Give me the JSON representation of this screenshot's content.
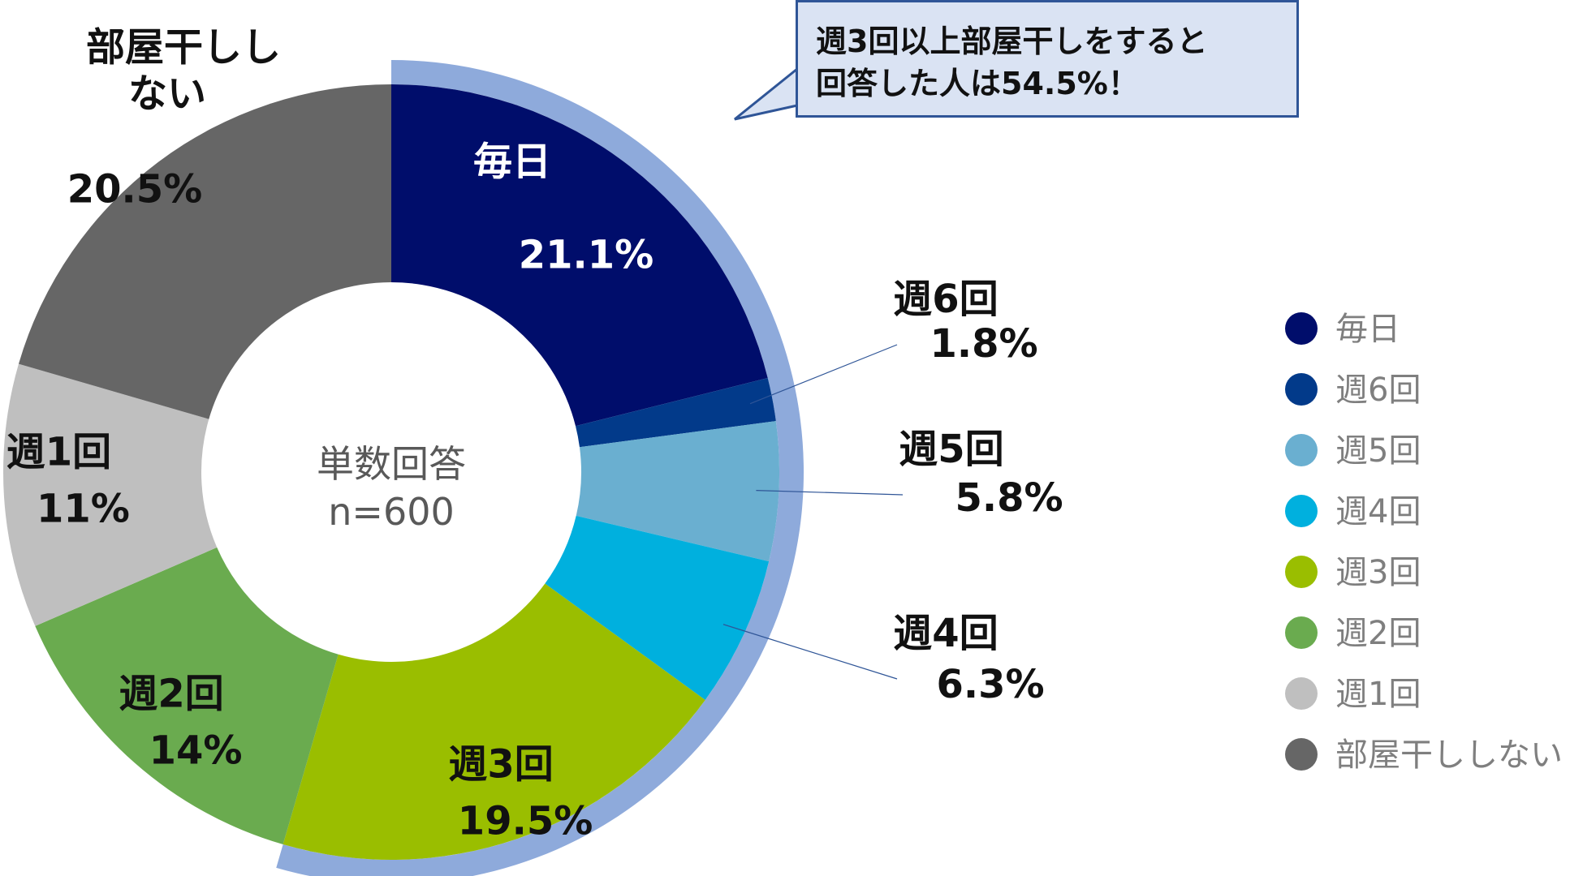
{
  "chart_data": {
    "type": "donut",
    "center_label": [
      "単数回答",
      "n=600"
    ],
    "slices": [
      {
        "name": "毎日",
        "value": 21.1,
        "label": "21.1%",
        "color": "#000d6b"
      },
      {
        "name": "週6回",
        "value": 1.8,
        "label": "1.8%",
        "color": "#023a8a"
      },
      {
        "name": "週5回",
        "value": 5.8,
        "label": "5.8%",
        "color": "#6aafd0"
      },
      {
        "name": "週4回",
        "value": 6.3,
        "label": "6.3%",
        "color": "#00b0de"
      },
      {
        "name": "週3回",
        "value": 19.5,
        "label": "19.5%",
        "color": "#9abe00"
      },
      {
        "name": "週2回",
        "value": 14,
        "label": "14%",
        "color": "#6aab4f"
      },
      {
        "name": "週1回",
        "value": 11,
        "label": "11%",
        "color": "#bfbfbf"
      },
      {
        "name": "部屋干ししない",
        "value": 20.5,
        "label": "20.5%",
        "color": "#666666"
      }
    ],
    "highlight": {
      "covers": [
        "毎日",
        "週6回",
        "週5回",
        "週4回",
        "週3回"
      ],
      "color": "#8eaadb"
    },
    "callout_lines": [
      "週3回以上部屋干しをすると",
      "回答した人は54.5%！"
    ],
    "legend_position": "right"
  }
}
